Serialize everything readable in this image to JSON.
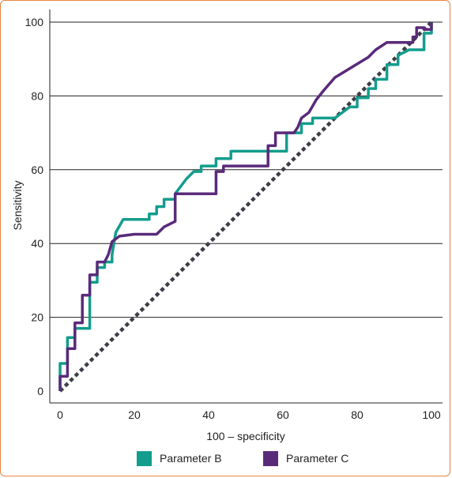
{
  "chart_data": {
    "type": "line",
    "xlabel": "100 – specificity",
    "ylabel": "Sensitivity",
    "xlim": [
      0,
      100
    ],
    "ylim": [
      0,
      100
    ],
    "x_ticks": [
      "0",
      "20",
      "40",
      "60",
      "80",
      "100"
    ],
    "y_ticks": [
      "0",
      "20",
      "40",
      "60",
      "80",
      "100"
    ],
    "grid": "horizontal",
    "legend_position": "bottom-center",
    "colors": {
      "Parameter B": "#139d8d",
      "Parameter C": "#5a2a7a",
      "reference": "#3d3e47"
    },
    "series": [
      {
        "name": "Parameter B",
        "x": [
          0,
          0,
          2,
          2,
          4,
          4,
          8,
          8,
          10,
          10,
          12,
          12,
          14,
          14,
          15,
          17,
          24,
          24,
          26,
          26,
          28,
          28,
          31,
          31,
          34,
          36,
          38,
          38,
          42,
          42,
          46,
          46,
          61,
          61,
          65,
          65,
          68,
          68,
          74,
          78,
          80,
          80,
          83,
          83,
          85,
          85,
          88,
          88,
          91,
          91,
          94,
          98,
          98,
          100,
          100
        ],
        "y": [
          0,
          7.5,
          7.5,
          14.5,
          14.5,
          17,
          17,
          29.5,
          29.5,
          33.5,
          33.5,
          35,
          35,
          37,
          43,
          46.5,
          46.5,
          48,
          48,
          50,
          50,
          52,
          52,
          53.5,
          57.5,
          59.5,
          59.5,
          61,
          61,
          63,
          63,
          65,
          65,
          70,
          70,
          72.5,
          72.5,
          74,
          74,
          77,
          77,
          79.5,
          79.5,
          82,
          82,
          84.5,
          84.5,
          88.5,
          88.5,
          91,
          92.5,
          92.5,
          97,
          97,
          100
        ]
      },
      {
        "name": "Parameter C",
        "x": [
          0,
          0,
          2,
          2,
          4,
          4,
          6,
          6,
          8,
          8,
          10,
          10,
          12,
          13,
          14,
          16,
          20,
          26,
          28,
          31,
          31,
          42,
          42,
          44,
          44,
          56,
          56,
          58,
          58,
          63,
          64,
          65,
          67,
          67,
          69,
          69,
          71,
          71,
          74,
          74,
          83,
          83,
          85,
          85,
          88,
          88,
          95,
          95,
          96,
          96,
          98,
          98,
          100,
          100
        ],
        "y": [
          0,
          4,
          4,
          11.5,
          11.5,
          18.5,
          18.5,
          26,
          26,
          31.5,
          31.5,
          35,
          35,
          37,
          40.5,
          42,
          42.5,
          42.5,
          44.5,
          46,
          53.5,
          53.5,
          59.5,
          59.5,
          61,
          61,
          66.5,
          66.5,
          70,
          70,
          71.5,
          74,
          75.5,
          75.5,
          79,
          79,
          81.5,
          81.5,
          85,
          85,
          90.5,
          90.5,
          92.5,
          92.5,
          94.5,
          94.5,
          94.5,
          96,
          96,
          98.5,
          98.5,
          98,
          98,
          100
        ]
      },
      {
        "name": "",
        "style": "dotted",
        "x": [
          0,
          100
        ],
        "y": [
          0,
          100
        ]
      }
    ]
  }
}
